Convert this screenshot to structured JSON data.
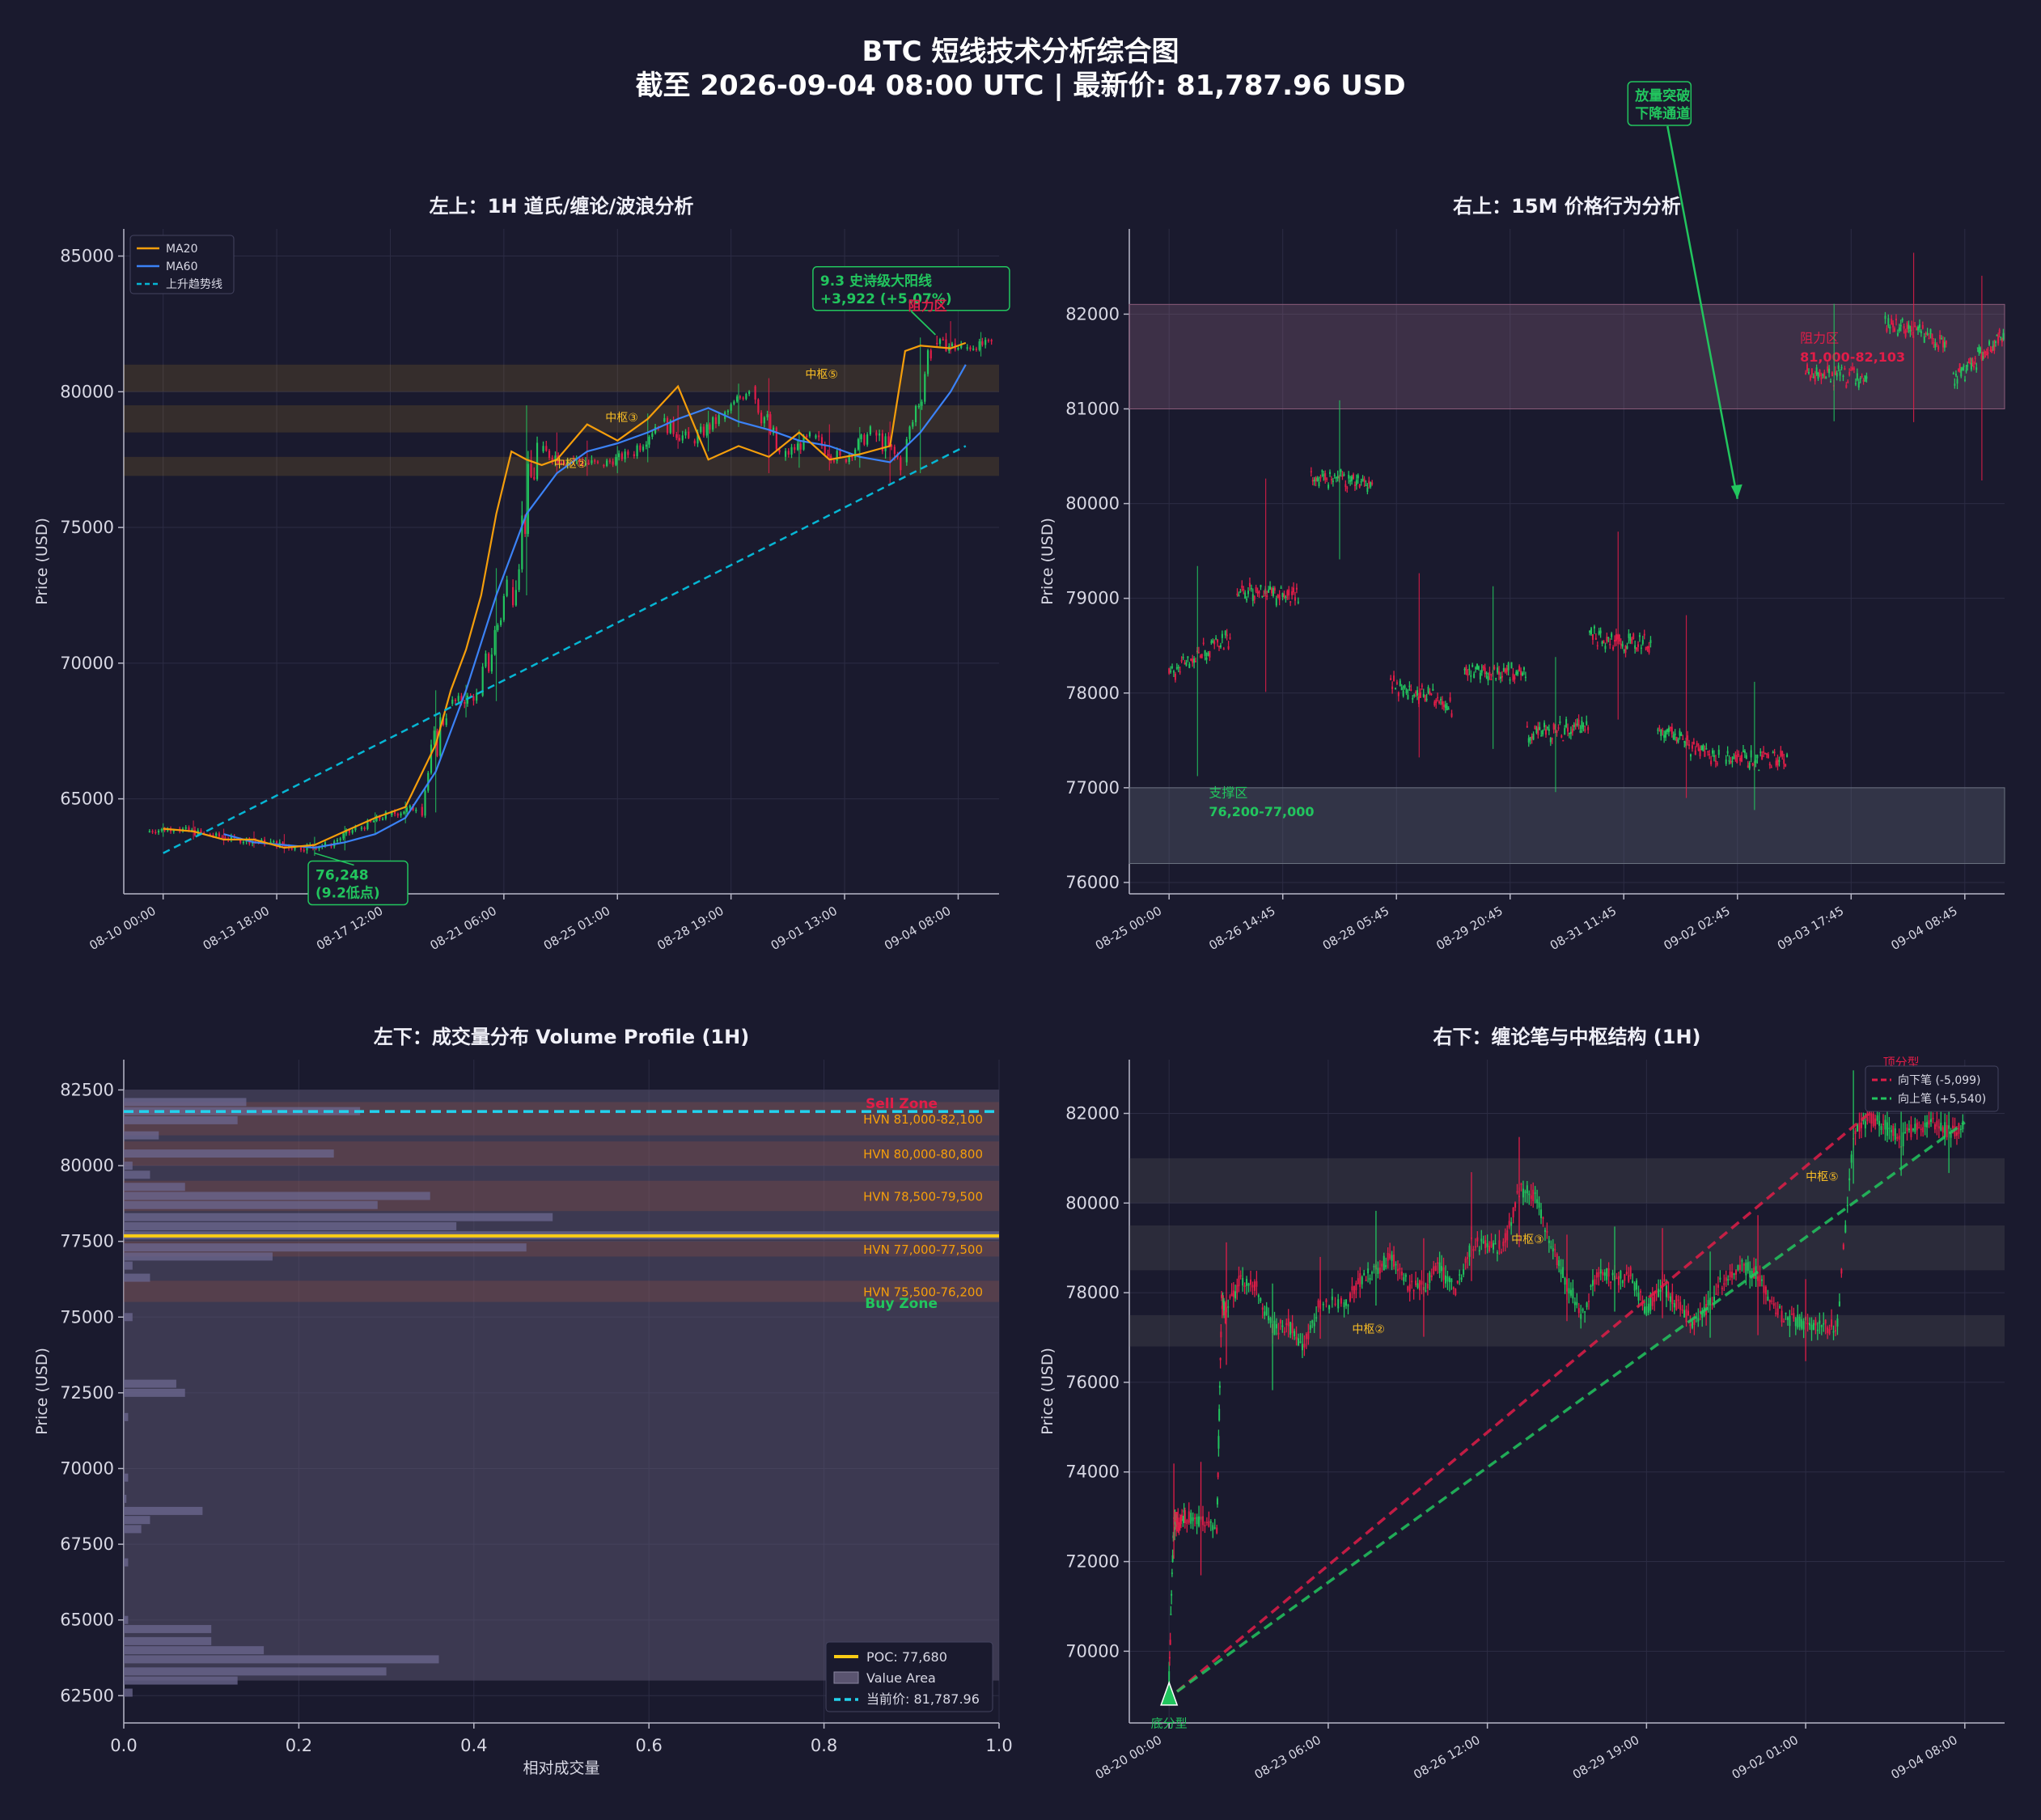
{
  "title": "BTC 短线技术分析综合图",
  "subtitle": "截至 2026-09-04 08:00 UTC | 最新价: 81,787.96 USD",
  "colors": {
    "background": "#1a1a2e",
    "grid": "#2c2c44",
    "axis": "#b8b8c8",
    "up": "#22c55e",
    "down": "#e11d48",
    "ma20": "#f59e0b",
    "ma60": "#3b82f6",
    "trendline": "#06b6d4",
    "zone_yellow": "#fbbf24",
    "resistance": "#ef4444"
  },
  "chart_data": [
    {
      "id": "p1",
      "type": "line",
      "title": "左上：1H 道氏/缠论/波浪分析",
      "ylabel": "Price (USD)",
      "xlabel": "",
      "ylim": [
        61500,
        86000
      ],
      "yticks": [
        65000,
        70000,
        75000,
        80000,
        85000
      ],
      "ytick_labels": [
        "65000",
        "70000",
        "75000",
        "80000",
        "85000"
      ],
      "xticks": [
        0,
        3.75,
        7.5,
        11.25,
        15,
        18.75,
        22.5,
        26.25
      ],
      "xlim": [
        -1.3,
        27.6
      ],
      "xtick_labels": [
        "08-10 00:00",
        "08-13 18:00",
        "08-17 12:00",
        "08-21 06:00",
        "08-25 01:00",
        "08-28 19:00",
        "09-01 13:00",
        "09-04 08:00"
      ],
      "legend": {
        "position": "top-left",
        "entries": [
          "MA20",
          "MA60",
          "上升趋势线"
        ]
      },
      "series": [
        {
          "name": "MA20",
          "x": [
            0,
            1,
            2,
            3,
            4,
            5,
            6,
            7,
            8,
            9,
            9.5,
            10,
            10.5,
            11,
            11.5,
            12,
            12.5,
            13,
            14,
            15,
            16,
            17,
            18,
            19,
            20,
            21,
            22,
            23,
            24,
            24.5,
            25,
            26,
            26.5
          ],
          "values": [
            63900,
            63800,
            63500,
            63500,
            63200,
            63300,
            63800,
            64300,
            64700,
            67000,
            69000,
            70500,
            72500,
            75500,
            77800,
            77500,
            77300,
            77500,
            78800,
            78200,
            79000,
            80200,
            77500,
            78000,
            77600,
            78500,
            77500,
            77700,
            78000,
            81500,
            81700,
            81600,
            81800
          ]
        },
        {
          "name": "MA60",
          "x": [
            2,
            3,
            4,
            5,
            6,
            7,
            8,
            9,
            10,
            11,
            12,
            13,
            14,
            15,
            16,
            17,
            18,
            19,
            20,
            21,
            22,
            23,
            24,
            25,
            26,
            26.5
          ],
          "values": [
            63700,
            63400,
            63300,
            63200,
            63400,
            63700,
            64300,
            66000,
            69000,
            72500,
            75500,
            77000,
            77800,
            78100,
            78500,
            79000,
            79400,
            78900,
            78600,
            78200,
            78000,
            77600,
            77400,
            78500,
            80000,
            81000
          ]
        },
        {
          "name": "上升趋势线",
          "x": [
            0,
            26.5
          ],
          "values": [
            63000,
            78000
          ]
        }
      ],
      "ohlc_1h": [
        [
          63800,
          64100,
          63600,
          63900
        ],
        [
          63900,
          64200,
          63500,
          63700
        ],
        [
          63700,
          63900,
          63300,
          63500
        ],
        [
          63500,
          63800,
          63200,
          63400
        ],
        [
          63400,
          63700,
          63000,
          63200
        ],
        [
          63200,
          63600,
          62900,
          63300
        ],
        [
          63300,
          64000,
          63100,
          63900
        ],
        [
          63900,
          64500,
          63700,
          64400
        ],
        [
          64400,
          64900,
          64100,
          64700
        ],
        [
          64700,
          69000,
          64500,
          68500
        ],
        [
          68500,
          69200,
          68000,
          68800
        ],
        [
          68800,
          73500,
          68600,
          72800
        ],
        [
          72800,
          79500,
          72500,
          77800
        ],
        [
          77800,
          78500,
          77000,
          77500
        ],
        [
          77500,
          78200,
          76900,
          77300
        ],
        [
          77300,
          78000,
          77000,
          77700
        ],
        [
          77700,
          79200,
          77400,
          78900
        ],
        [
          78900,
          79500,
          77900,
          78200
        ],
        [
          78200,
          79300,
          77800,
          79000
        ],
        [
          79000,
          80300,
          78700,
          80200
        ],
        [
          80200,
          80500,
          77000,
          77600
        ],
        [
          77600,
          78600,
          77200,
          78300
        ],
        [
          78300,
          78800,
          77100,
          77500
        ],
        [
          77500,
          78700,
          77200,
          78500
        ],
        [
          78500,
          78900,
          76600,
          77400
        ],
        [
          77400,
          82000,
          77000,
          81800
        ],
        [
          81800,
          82600,
          81400,
          81600
        ],
        [
          81600,
          82200,
          81300,
          81800
        ]
      ],
      "zones": [
        {
          "label": "中枢⑤",
          "low": 80000,
          "high": 81000
        },
        {
          "label": "中枢③",
          "low": 78500,
          "high": 79500
        },
        {
          "label": "中枢②",
          "low": 76900,
          "high": 77600
        }
      ],
      "annotations": [
        {
          "text": "中枢②",
          "x": 12.9,
          "y": 77200
        },
        {
          "text": "中枢③",
          "x": 14.6,
          "y": 78900
        },
        {
          "text": "中枢⑤",
          "x": 21.2,
          "y": 80500
        },
        {
          "text": "76,248",
          "text2": "(9.2低点)",
          "x": 6.3,
          "y": 62200
        },
        {
          "text": "9.3 史诗级大阳线",
          "text2": "+3,922 (+5.07%)",
          "x": 24.7,
          "y": 83800
        },
        {
          "text": "阻力区",
          "x": 24.6,
          "y": 84200
        }
      ]
    },
    {
      "id": "p2",
      "type": "line",
      "title": "右上：15M 价格行为分析",
      "ylabel": "Price (USD)",
      "xlabel": "",
      "ylim": [
        75880,
        82900
      ],
      "yticks": [
        76000,
        77000,
        78000,
        79000,
        80000,
        81000,
        82000
      ],
      "ytick_labels": [
        "76000",
        "77000",
        "78000",
        "79000",
        "80000",
        "81000",
        "82000"
      ],
      "xticks": [
        0,
        1,
        2,
        3,
        4,
        5,
        6,
        7
      ],
      "xlim": [
        -0.35,
        7.35
      ],
      "xtick_labels": [
        "08-25 00:00",
        "08-26 14:45",
        "08-28 05:45",
        "08-29 20:45",
        "08-31 11:45",
        "09-02 02:45",
        "09-03 17:45",
        "09-04 08:45"
      ],
      "levels": [
        {
          "x": 0,
          "values": [
            78200,
            78300,
            78400,
            78500,
            78600
          ]
        },
        {
          "x": 0.6,
          "values": [
            79100,
            79050,
            79000
          ]
        },
        {
          "x": 1.25,
          "values": [
            80300,
            80250,
            80200
          ]
        },
        {
          "x": 1.95,
          "values": [
            78100,
            77900,
            77850
          ]
        },
        {
          "x": 2.6,
          "values": [
            78250,
            78200,
            78200
          ]
        },
        {
          "x": 3.15,
          "values": [
            77550,
            77600,
            77650
          ]
        },
        {
          "x": 3.7,
          "values": [
            78600,
            78550,
            78500
          ]
        },
        {
          "x": 4.3,
          "values": [
            77600,
            77400,
            77300
          ]
        },
        {
          "x": 4.9,
          "values": [
            77300,
            77300,
            77300
          ]
        },
        {
          "x": 5.6,
          "values": [
            81400,
            81200,
            81300
          ]
        },
        {
          "x": 6.3,
          "values": [
            81900,
            81800,
            81700
          ]
        },
        {
          "x": 6.9,
          "values": [
            81300,
            81500,
            81800
          ]
        }
      ],
      "zones": [
        {
          "label": "阻力区",
          "range_label": "81,000-82,103",
          "low": 81000,
          "high": 82103
        },
        {
          "label": "支撑区",
          "range_label": "76,200-77,000",
          "low": 76200,
          "high": 77000
        }
      ],
      "annotations": [
        {
          "text": "放量突破",
          "text2": "下降通道",
          "x": 4.1,
          "y": 85000
        }
      ]
    },
    {
      "id": "p3",
      "type": "bar",
      "title": "左下：成交量分布 Volume Profile (1H)",
      "ylabel": "Price (USD)",
      "xlabel": "相对成交量",
      "xlim": [
        0,
        1
      ],
      "ylim": [
        61600,
        83500
      ],
      "xticks": [
        0,
        0.2,
        0.4,
        0.6,
        0.8,
        1.0
      ],
      "xtick_labels": [
        "0.0",
        "0.2",
        "0.4",
        "0.6",
        "0.8",
        "1.0"
      ],
      "yticks": [
        62500,
        65000,
        67500,
        70000,
        72500,
        75000,
        77500,
        80000,
        82500
      ],
      "ytick_labels": [
        "62500",
        "65000",
        "67500",
        "70000",
        "72500",
        "75000",
        "77500",
        "80000",
        "82500"
      ],
      "bins": [
        {
          "price": 82100,
          "value": 0.14
        },
        {
          "price": 81800,
          "value": 0.27
        },
        {
          "price": 81500,
          "value": 0.13
        },
        {
          "price": 81000,
          "value": 0.04
        },
        {
          "price": 80400,
          "value": 0.24
        },
        {
          "price": 80000,
          "value": 0.01
        },
        {
          "price": 79700,
          "value": 0.03
        },
        {
          "price": 79300,
          "value": 0.07
        },
        {
          "price": 79000,
          "value": 0.35
        },
        {
          "price": 78700,
          "value": 0.29
        },
        {
          "price": 78300,
          "value": 0.49
        },
        {
          "price": 78000,
          "value": 0.38
        },
        {
          "price": 77700,
          "value": 1.0
        },
        {
          "price": 77300,
          "value": 0.46
        },
        {
          "price": 77000,
          "value": 0.17
        },
        {
          "price": 76700,
          "value": 0.01
        },
        {
          "price": 76300,
          "value": 0.03
        },
        {
          "price": 75000,
          "value": 0.01
        },
        {
          "price": 72800,
          "value": 0.06
        },
        {
          "price": 72500,
          "value": 0.07
        },
        {
          "price": 71700,
          "value": 0.005
        },
        {
          "price": 69700,
          "value": 0.005
        },
        {
          "price": 69000,
          "value": 0.003
        },
        {
          "price": 68600,
          "value": 0.09
        },
        {
          "price": 68300,
          "value": 0.03
        },
        {
          "price": 68000,
          "value": 0.02
        },
        {
          "price": 66900,
          "value": 0.005
        },
        {
          "price": 65000,
          "value": 0.005
        },
        {
          "price": 64700,
          "value": 0.1
        },
        {
          "price": 64300,
          "value": 0.1
        },
        {
          "price": 64000,
          "value": 0.16
        },
        {
          "price": 63700,
          "value": 0.36
        },
        {
          "price": 63300,
          "value": 0.3
        },
        {
          "price": 63000,
          "value": 0.13
        },
        {
          "price": 62600,
          "value": 0.01
        }
      ],
      "value_area": [
        63000,
        82500
      ],
      "hvn_bands": [
        {
          "label": "HVN 81,000-82,100",
          "low": 81000,
          "high": 82100
        },
        {
          "label": "HVN 80,000-80,800",
          "low": 80000,
          "high": 80800
        },
        {
          "label": "HVN 78,500-79,500",
          "low": 78500,
          "high": 79500
        },
        {
          "label": "HVN 77,000-77,500",
          "low": 77000,
          "high": 77500
        },
        {
          "label": "HVN 75,500-76,200",
          "low": 75500,
          "high": 76200
        }
      ],
      "poc": 77680,
      "current_price": 81787.96,
      "sell_zone_label": "Sell Zone",
      "buy_zone_label": "Buy Zone",
      "legend": {
        "position": "bottom-right",
        "entries": [
          "POC: 77,680",
          "Value Area",
          "当前价: 81,787.96"
        ]
      }
    },
    {
      "id": "p4",
      "type": "line",
      "title": "右下：缠论笔与中枢结构 (1H)",
      "ylabel": "Price (USD)",
      "xlabel": "",
      "ylim": [
        68400,
        83200
      ],
      "yticks": [
        70000,
        72000,
        74000,
        76000,
        78000,
        80000,
        82000
      ],
      "ytick_labels": [
        "70000",
        "72000",
        "74000",
        "76000",
        "78000",
        "80000",
        "82000"
      ],
      "xticks": [
        0,
        1,
        2,
        3,
        4,
        5
      ],
      "xlim": [
        -0.25,
        5.25
      ],
      "xtick_labels": [
        "08-20 00:00",
        "08-23 06:00",
        "08-26 12:00",
        "08-29 19:00",
        "09-02 01:00",
        "09-04 08:00"
      ],
      "price_path": {
        "x": [
          0,
          0.03,
          0.05,
          0.1,
          0.2,
          0.3,
          0.33,
          0.36,
          0.45,
          0.55,
          0.65,
          0.75,
          0.85,
          0.95,
          1.1,
          1.2,
          1.3,
          1.4,
          1.5,
          1.6,
          1.7,
          1.8,
          1.9,
          2.0,
          2.1,
          2.2,
          2.3,
          2.4,
          2.5,
          2.6,
          2.7,
          2.8,
          2.9,
          3.0,
          3.1,
          3.2,
          3.3,
          3.4,
          3.5,
          3.6,
          3.7,
          3.8,
          3.9,
          4.0,
          4.1,
          4.2,
          4.3,
          4.4,
          4.5,
          4.6,
          4.7,
          4.8,
          4.9,
          5.0
        ],
        "values": [
          69400,
          72900,
          72800,
          73000,
          72900,
          72800,
          77800,
          77600,
          78300,
          78100,
          77200,
          77300,
          76800,
          77800,
          77700,
          78300,
          78500,
          78800,
          78200,
          78100,
          78600,
          78000,
          79100,
          79000,
          79000,
          80300,
          80200,
          79000,
          78200,
          77500,
          78500,
          78300,
          78400,
          77600,
          78200,
          77700,
          77300,
          77800,
          78400,
          78600,
          78400,
          77600,
          77400,
          77300,
          77200,
          77300,
          81600,
          81900,
          81700,
          81400,
          81700,
          81800,
          81600,
          81700
        ]
      },
      "bi": [
        {
          "name": "向下笔 (-5,099)",
          "from": [
            0.05,
            69100
          ],
          "to": [
            4.5,
            82300
          ]
        },
        {
          "name": "向上笔 (+5,540)",
          "from": [
            0.05,
            69100
          ],
          "to": [
            5.0,
            81800
          ]
        }
      ],
      "zones": [
        {
          "label": "中枢⑤",
          "low": 80000,
          "high": 81000
        },
        {
          "label": "中枢③",
          "low": 78500,
          "high": 79500
        },
        {
          "label": "中枢②",
          "low": 76800,
          "high": 77500
        }
      ],
      "annotations": [
        {
          "text": "底分型",
          "x": 0.0,
          "y": 68300
        },
        {
          "text": "顶分型",
          "x": 4.6,
          "y": 83300
        },
        {
          "text": "中枢②",
          "x": 1.15,
          "y": 77100
        },
        {
          "text": "中枢③",
          "x": 2.15,
          "y": 79100
        },
        {
          "text": "中枢⑤",
          "x": 4.0,
          "y": 80500
        }
      ],
      "legend": {
        "position": "top-right",
        "entries": [
          "向下笔 (-5,099)",
          "向上笔 (+5,540)"
        ]
      }
    }
  ]
}
